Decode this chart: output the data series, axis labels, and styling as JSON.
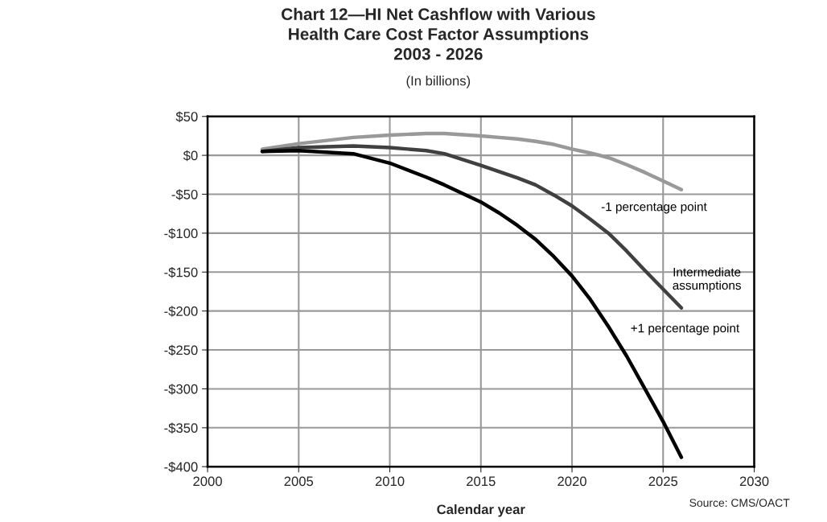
{
  "chart_data": {
    "type": "line",
    "title": "Chart 12—HI Net Cashflow with Various\nHealth Care Cost Factor Assumptions\n2003 - 2026",
    "subtitle": "(In billions)",
    "xlabel": "Calendar year",
    "x": [
      2003,
      2005,
      2008,
      2010,
      2012,
      2013,
      2015,
      2016,
      2017,
      2018,
      2019,
      2020,
      2021,
      2022,
      2023,
      2024,
      2025,
      2026
    ],
    "series": [
      {
        "name": "-1 percentage point",
        "color": "#999999",
        "values": [
          8,
          15,
          23,
          26,
          28,
          28,
          25,
          23,
          21,
          18,
          14,
          8,
          3,
          -3,
          -12,
          -22,
          -33,
          -44
        ]
      },
      {
        "name": "Intermediate assumptions",
        "color": "#404040",
        "values": [
          5,
          10,
          12,
          10,
          6,
          2,
          -13,
          -21,
          -29,
          -38,
          -51,
          -65,
          -82,
          -100,
          -123,
          -148,
          -172,
          -196
        ]
      },
      {
        "name": "+1 percentage point",
        "color": "#000000",
        "values": [
          5,
          6,
          2,
          -10,
          -28,
          -38,
          -60,
          -74,
          -90,
          -108,
          -130,
          -155,
          -185,
          -220,
          -258,
          -300,
          -342,
          -388
        ]
      }
    ],
    "xlim": [
      2000,
      2030
    ],
    "xticks": [
      2000,
      2005,
      2010,
      2015,
      2020,
      2025,
      2030
    ],
    "ylim": [
      -400,
      50
    ],
    "yticks": [
      {
        "value": 50,
        "label": "$50"
      },
      {
        "value": 0,
        "label": "$0"
      },
      {
        "value": -50,
        "label": "-$50"
      },
      {
        "value": -100,
        "label": "-$100"
      },
      {
        "value": -150,
        "label": "-$150"
      },
      {
        "value": -200,
        "label": "-$200"
      },
      {
        "value": -250,
        "label": "-$250"
      },
      {
        "value": -300,
        "label": "-$300"
      },
      {
        "value": -350,
        "label": "-$350"
      },
      {
        "value": -400,
        "label": "-$400"
      }
    ],
    "grid": true,
    "legend": false,
    "marker": "none",
    "line_style": "solid",
    "annotations": [
      "Source: CMS/OACT"
    ]
  }
}
